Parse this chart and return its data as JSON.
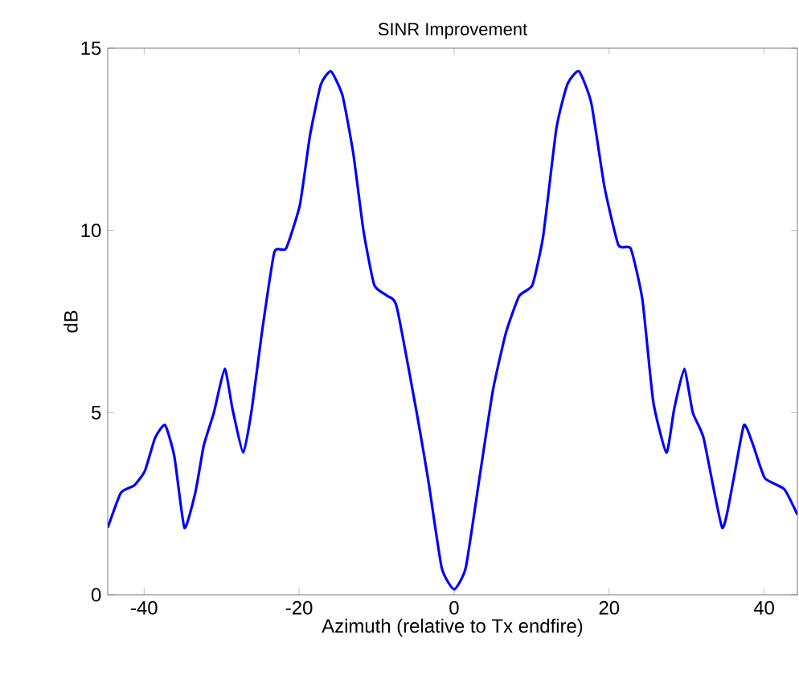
{
  "chart_data": {
    "type": "line",
    "title": "SINR Improvement",
    "xlabel": "Azimuth (relative to Tx endfire)",
    "ylabel": "dB",
    "xlim": [
      -44.7,
      44.3
    ],
    "ylim": [
      0,
      15
    ],
    "xticks": [
      -40,
      -20,
      0,
      20,
      40
    ],
    "yticks": [
      0,
      5,
      10,
      15
    ],
    "marker": "none",
    "line_style": "solid",
    "series": [
      {
        "color": "#0000ff",
        "x": [
          -44.7,
          -43.0,
          -41.3,
          -39.9,
          -38.6,
          -37.3,
          -36.1,
          -34.8,
          -33.4,
          -32.3,
          -31.0,
          -29.6,
          -28.6,
          -27.2,
          -26.1,
          -24.8,
          -23.2,
          -21.7,
          -19.9,
          -18.6,
          -17.2,
          -15.9,
          -14.4,
          -13.0,
          -11.7,
          -10.3,
          -8.6,
          -7.4,
          -4.7,
          -3.3,
          -1.6,
          0,
          1.5,
          3.2,
          5.0,
          6.7,
          8.4,
          10.1,
          11.5,
          13.2,
          14.6,
          16.1,
          17.7,
          19.4,
          21.2,
          22.8,
          24.3,
          25.7,
          27.4,
          28.4,
          29.7,
          30.8,
          32.2,
          34.6,
          36.0,
          37.4,
          38.6,
          40.1,
          42.6,
          44.3
        ],
        "values": [
          1.84,
          2.8,
          3.0,
          3.4,
          4.3,
          4.66,
          3.8,
          1.84,
          2.8,
          4.1,
          5.0,
          6.2,
          5.1,
          3.9,
          5.1,
          7.2,
          9.4,
          9.5,
          10.7,
          12.6,
          14.0,
          14.37,
          13.7,
          12.1,
          10.0,
          8.5,
          8.2,
          7.9,
          4.85,
          3.1,
          0.74,
          0.15,
          0.74,
          3.1,
          5.6,
          7.2,
          8.2,
          8.5,
          9.85,
          12.8,
          14.0,
          14.37,
          13.5,
          11.2,
          9.6,
          9.5,
          8.1,
          5.3,
          3.9,
          5.1,
          6.2,
          5.0,
          4.3,
          1.84,
          3.1,
          4.66,
          4.1,
          3.2,
          2.9,
          2.2
        ]
      }
    ]
  }
}
